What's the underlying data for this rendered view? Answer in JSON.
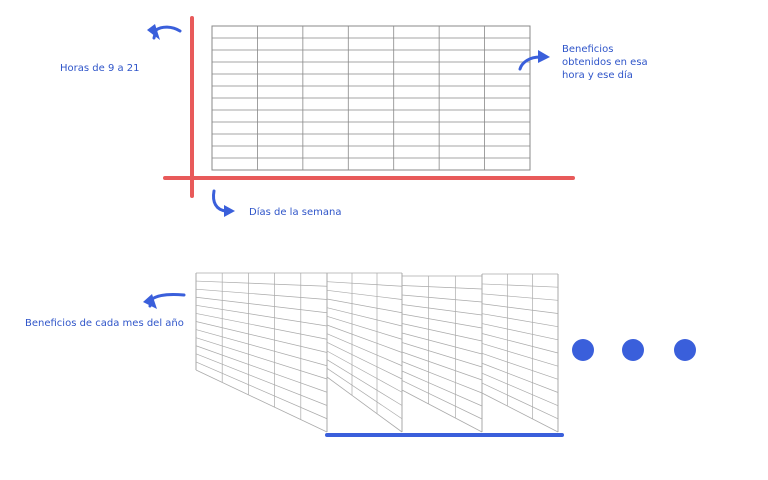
{
  "labels": {
    "hours": "Horas de 9 a 21",
    "profit_line1": "Beneficios",
    "profit_line2": "obtenidos en esa",
    "profit_line3": "hora y ese día",
    "days": "Días de la semana",
    "months": "Beneficios de cada mes del año"
  },
  "grid": {
    "columns": 7,
    "rows": 12
  },
  "stack": {
    "sheets": 4,
    "ellipsis_dots": 3
  },
  "colors": {
    "axis_red": "#e85a5a",
    "accent_blue": "#3a5fdb",
    "text_blue": "#2f55c9",
    "grid_line": "#888888",
    "sheet_line": "#aaaaaa"
  }
}
